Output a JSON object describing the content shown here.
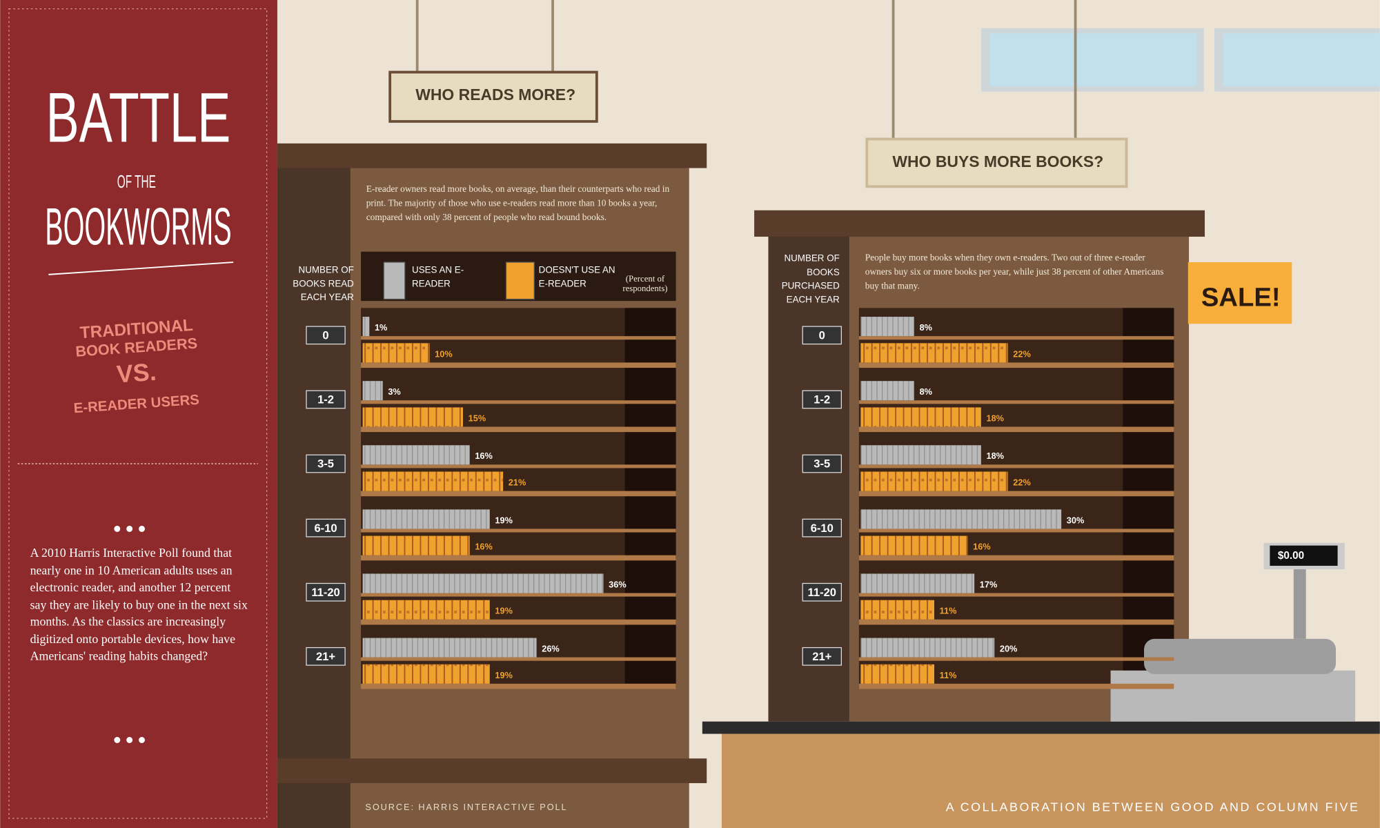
{
  "sidebar": {
    "title": [
      "BATTLE",
      "OF THE",
      "BOOKWORMS"
    ],
    "subtitle": [
      "TRADITIONAL",
      "BOOK READERS",
      "VS.",
      "E-READER USERS"
    ],
    "intro": "A 2010 Harris Interactive Poll found that nearly one in 10 American adults uses an electronic reader, and another 12 percent say they are likely to buy one in the next six months. As the classics are increasingly digitized onto portable devices, how have Americans' reading habits changed?"
  },
  "chart_data": [
    {
      "type": "bar",
      "title": "WHO READS MORE?",
      "description": "E-reader owners read more books, on average, than their counterparts who read in print. The majority of those who use e-readers read more than 10 books a year, compared with only 38 percent of people who read bound books.",
      "y_label": "NUMBER OF BOOKS READ EACH YEAR",
      "legend_note": "(Percent of respondents)",
      "categories": [
        "0",
        "1-2",
        "3-5",
        "6-10",
        "11-20",
        "21+"
      ],
      "series": [
        {
          "name": "USES AN E-READER",
          "color": "#b9b9b9",
          "values": [
            1,
            3,
            16,
            19,
            36,
            26
          ],
          "value_labels": [
            "1%",
            "3%",
            "16%",
            "19%",
            "36%",
            "26%"
          ]
        },
        {
          "name": "DOESN'T USE AN E-READER",
          "color": "#f0a22e",
          "values": [
            10,
            15,
            21,
            16,
            19,
            19
          ],
          "value_labels": [
            "10%",
            "15%",
            "21%",
            "16%",
            "19%",
            "19%"
          ]
        }
      ]
    },
    {
      "type": "bar",
      "title": "WHO BUYS MORE BOOKS?",
      "description": "People buy more books when they own e-readers. Two out of three e-reader owners buy six or more books per year, while just 38 percent of other Americans buy that many.",
      "y_label": "NUMBER OF BOOKS PURCHASED EACH YEAR",
      "categories": [
        "0",
        "1-2",
        "3-5",
        "6-10",
        "11-20",
        "21+"
      ],
      "series": [
        {
          "color": "#b9b9b9",
          "values": [
            8,
            8,
            18,
            30,
            17,
            20
          ],
          "value_labels": [
            "8%",
            "8%",
            "18%",
            "30%",
            "17%",
            "20%"
          ]
        },
        {
          "color": "#f0a22e",
          "values": [
            22,
            18,
            22,
            16,
            11,
            11
          ],
          "value_labels": [
            "22%",
            "18%",
            "22%",
            "16%",
            "11%",
            "11%"
          ]
        }
      ]
    }
  ],
  "scene": {
    "sale": "SALE!",
    "register": "$0.00"
  },
  "footer": {
    "source": "SOURCE: HARRIS INTERACTIVE POLL",
    "credit": "A COLLABORATION BETWEEN GOOD AND COLUMN FIVE"
  }
}
